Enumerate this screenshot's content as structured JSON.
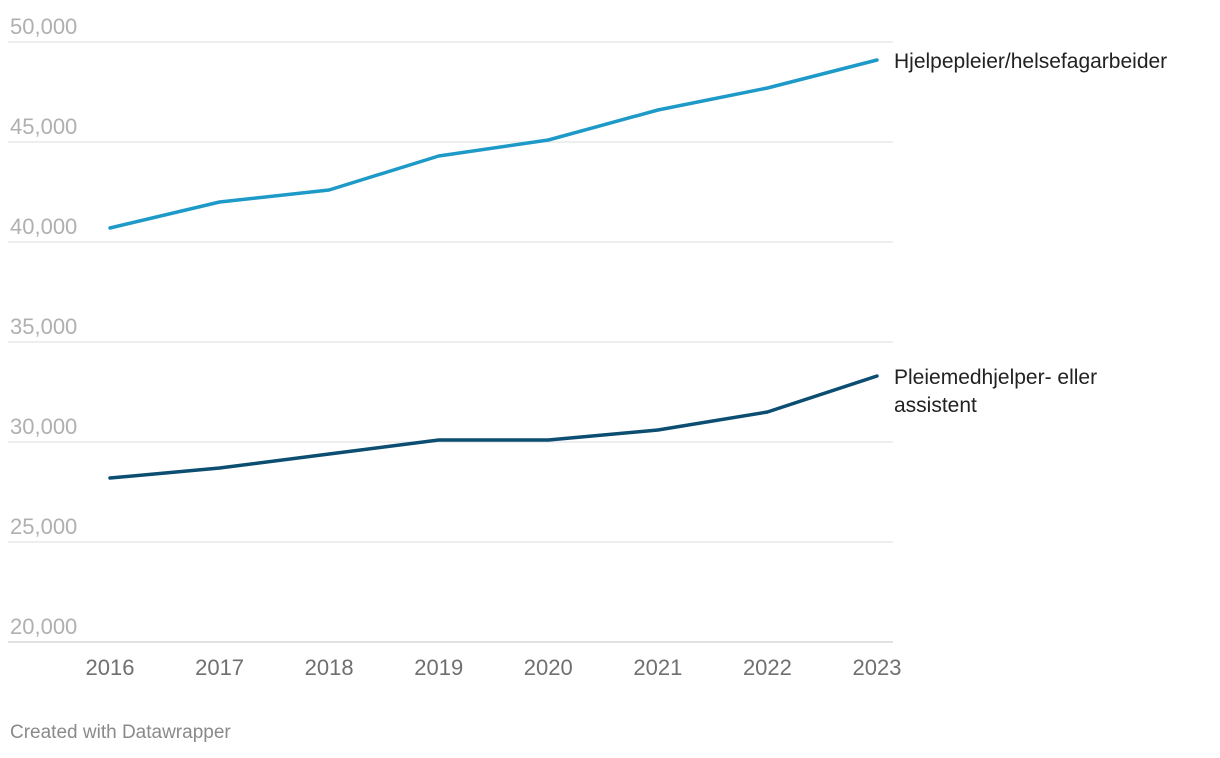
{
  "chart_data": {
    "type": "line",
    "title": "",
    "xlabel": "",
    "ylabel": "",
    "x": [
      "2016",
      "2017",
      "2018",
      "2019",
      "2020",
      "2021",
      "2022",
      "2023"
    ],
    "ylim": [
      20000,
      50000
    ],
    "yticks": [
      20000,
      25000,
      30000,
      35000,
      40000,
      45000,
      50000
    ],
    "ytick_labels": [
      "20,000",
      "25,000",
      "30,000",
      "35,000",
      "40,000",
      "45,000",
      "50,000"
    ],
    "grid": true,
    "legend": "direct labels at line ends",
    "series": [
      {
        "name": "Hjelpepleier/helsefagarbeider",
        "label_lines": [
          "Hjelpepleier/helsefagarbeider"
        ],
        "color": "#1d9ac7",
        "values": [
          40700,
          42000,
          42600,
          44300,
          45100,
          46600,
          47700,
          49100
        ]
      },
      {
        "name": "Pleiemedhjelper- eller assistent",
        "label_lines": [
          "Pleiemedhjelper- eller",
          "assistent"
        ],
        "color": "#0b4e71",
        "values": [
          28200,
          28700,
          29400,
          30100,
          30100,
          30600,
          31500,
          33300
        ]
      }
    ]
  },
  "footer": {
    "credit": "Created with Datawrapper"
  }
}
